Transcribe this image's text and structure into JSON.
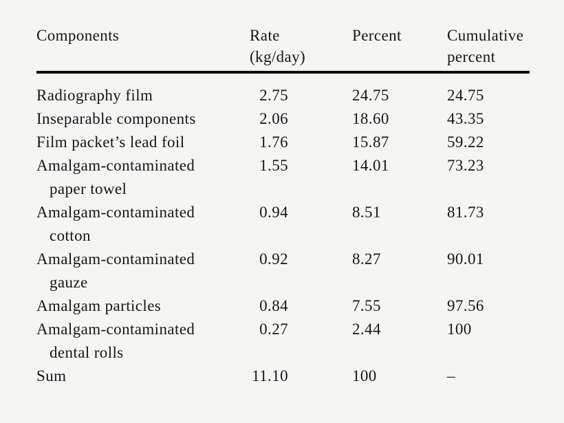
{
  "page": {
    "background_color": "#f5f5f4",
    "text_color": "#161616",
    "rule_color": "#0a0a0a"
  },
  "table": {
    "headers": {
      "components": "Components",
      "rate_line1": "Rate",
      "rate_line2": "(kg/day)",
      "percent": "Percent",
      "cumulative_line1": "Cumulative",
      "cumulative_line2": "percent"
    },
    "rows": [
      {
        "name": "Radiography film",
        "name_line2": "",
        "rate": "2.75",
        "percent": "24.75",
        "cumulative": "24.75"
      },
      {
        "name": "Inseparable components",
        "name_line2": "",
        "rate": "2.06",
        "percent": "18.60",
        "cumulative": "43.35"
      },
      {
        "name": "Film packet’s lead foil",
        "name_line2": "",
        "rate": "1.76",
        "percent": "15.87",
        "cumulative": "59.22"
      },
      {
        "name": "Amalgam-contaminated",
        "name_line2": "paper towel",
        "rate": "1.55",
        "percent": "14.01",
        "cumulative": "73.23"
      },
      {
        "name": "Amalgam-contaminated",
        "name_line2": "cotton",
        "rate": "0.94",
        "percent": "8.51",
        "cumulative": "81.73"
      },
      {
        "name": "Amalgam-contaminated",
        "name_line2": "gauze",
        "rate": "0.92",
        "percent": "8.27",
        "cumulative": "90.01"
      },
      {
        "name": "Amalgam particles",
        "name_line2": "",
        "rate": "0.84",
        "percent": "7.55",
        "cumulative": "97.56"
      },
      {
        "name": "Amalgam-contaminated",
        "name_line2": "dental rolls",
        "rate": "0.27",
        "percent": "2.44",
        "cumulative": "100"
      },
      {
        "name": "Sum",
        "name_line2": "",
        "rate": "11.10",
        "percent": "100",
        "cumulative": "–"
      }
    ]
  }
}
